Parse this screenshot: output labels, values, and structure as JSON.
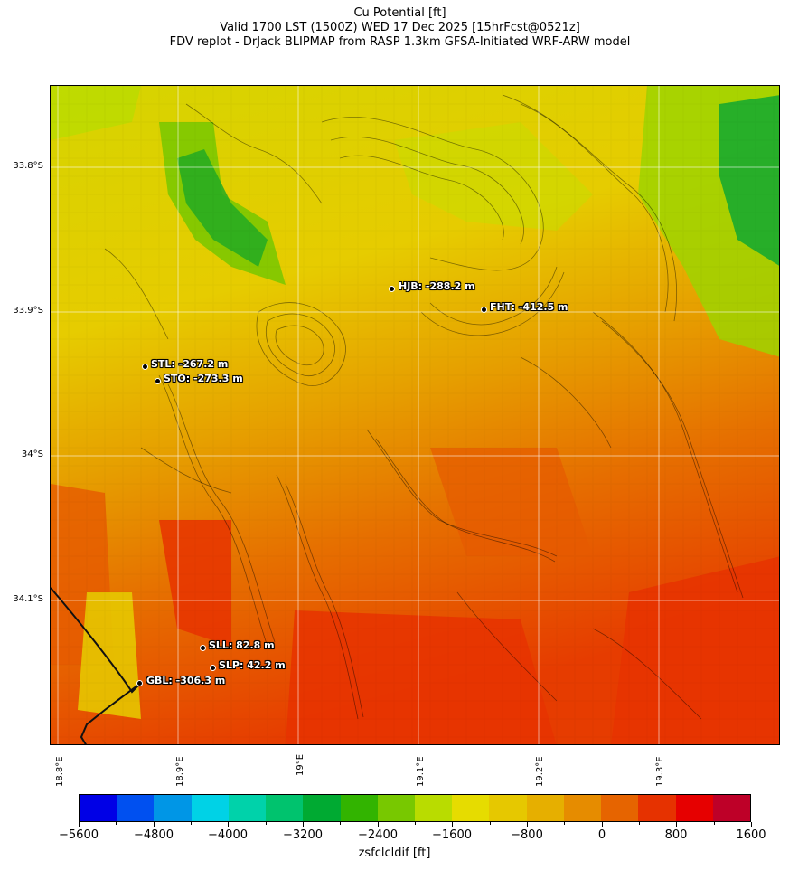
{
  "header": {
    "line1": "Cu Potential [ft]",
    "line2": "Valid 1700 LST (1500Z) WED 17 Dec 2025 [15hrFcst@0521z]",
    "line3": "FDV replot - DrJack BLIPMAP from RASP 1.3km GFSA-Initiated WRF-ARW model"
  },
  "map": {
    "lat_labels": [
      "33.8°S",
      "33.9°S",
      "34°S",
      "34.1°S"
    ],
    "lon_labels": [
      "18.8°E",
      "18.9°E",
      "19°E",
      "19.1°E",
      "19.2°E",
      "19.3°E"
    ],
    "stations": [
      {
        "id": "HJB",
        "label": "HJB: -288.2 m"
      },
      {
        "id": "FHT",
        "label": "FHT: -412.5 m"
      },
      {
        "id": "STL",
        "label": "STL: -267.2 m"
      },
      {
        "id": "STO",
        "label": "STO: -273.3 m"
      },
      {
        "id": "SLL",
        "label": "SLL: 82.8 m"
      },
      {
        "id": "SLP",
        "label": "SLP: 42.2 m"
      },
      {
        "id": "GBL",
        "label": "GBL: -306.3 m"
      }
    ]
  },
  "colorbar": {
    "xlabel": "zsfclcldif [ft]",
    "tick_labels": [
      "−5600",
      "−4800",
      "−4000",
      "−3200",
      "−2400",
      "−1600",
      "−800",
      "0",
      "800",
      "1600"
    ],
    "colors": [
      "#0000e6",
      "#0050f0",
      "#0096e6",
      "#00d2e6",
      "#00d2aa",
      "#00c36e",
      "#00aa32",
      "#32b400",
      "#78c800",
      "#b9dc00",
      "#e6dc00",
      "#e6c800",
      "#e6af00",
      "#e68c00",
      "#e66400",
      "#e63200",
      "#e60000",
      "#be0028"
    ]
  }
}
